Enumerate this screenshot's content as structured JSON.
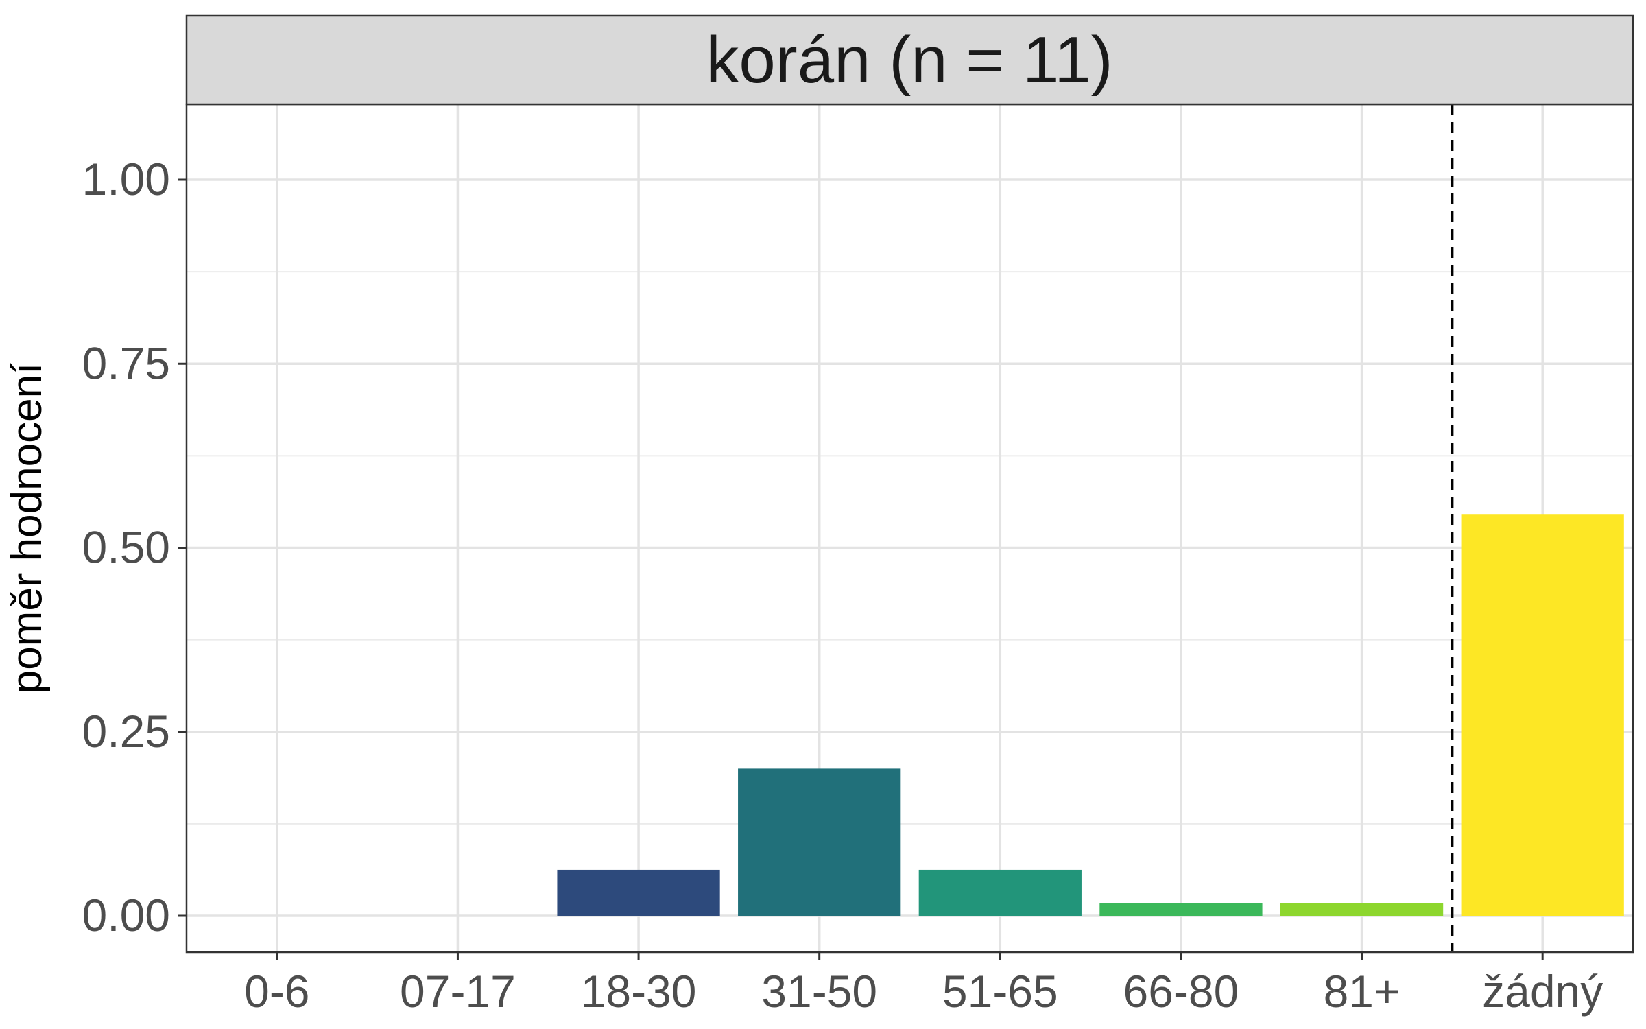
{
  "chart_data": {
    "type": "bar",
    "title": "korán (n = 11)",
    "xlabel": "",
    "ylabel": "poměr hodnocení",
    "categories": [
      "0-6",
      "07-17",
      "18-30",
      "31-50",
      "51-65",
      "66-80",
      "81+",
      "žádný"
    ],
    "values": [
      0,
      0,
      0.0625,
      0.2,
      0.0625,
      0.0175,
      0.0175,
      0.545
    ],
    "colors": [
      "#440154",
      "#46327e",
      "#2d4a7c",
      "#21707a",
      "#22957a",
      "#3bb85a",
      "#8dd62e",
      "#fde725"
    ],
    "ylim": [
      -0.05,
      1.1
    ],
    "yticks": [
      0.0,
      0.25,
      0.5,
      0.75,
      1.0
    ],
    "ytick_labels": [
      "0.00",
      "0.25",
      "0.50",
      "0.75",
      "1.00"
    ],
    "grid": true,
    "reference_line": {
      "between": [
        "81+",
        "žádný"
      ],
      "style": "dashed"
    },
    "legend": "none"
  }
}
